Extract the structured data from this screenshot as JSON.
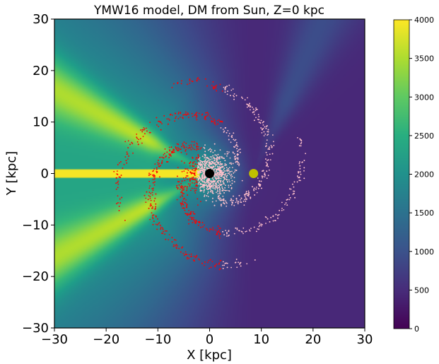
{
  "chart_data": {
    "type": "heatmap",
    "title": "YMW16 model, DM from Sun, Z=0 kpc",
    "xlabel": "X [kpc]",
    "ylabel": "Y [kpc]",
    "xlim": [
      -30,
      30
    ],
    "ylim": [
      -30,
      30
    ],
    "xticks": [
      "−30",
      "−20",
      "−10",
      "0",
      "10",
      "20",
      "30"
    ],
    "yticks": [
      "−30",
      "−20",
      "−10",
      "0",
      "10",
      "20",
      "30"
    ],
    "colorbar": {
      "range": [
        0,
        4000
      ],
      "ticks": [
        "0",
        "500",
        "1000",
        "1500",
        "2000",
        "2500",
        "3000",
        "3500",
        "4000"
      ],
      "colormap": "viridis"
    },
    "markers": [
      {
        "x": 0,
        "y": 0,
        "color": "#000000"
      },
      {
        "x": 8.5,
        "y": 0,
        "color": "#bfbf00"
      }
    ],
    "scatter_series": [
      {
        "color": "#ff0000"
      },
      {
        "color": "#ffc0cb"
      }
    ],
    "grid": false
  }
}
